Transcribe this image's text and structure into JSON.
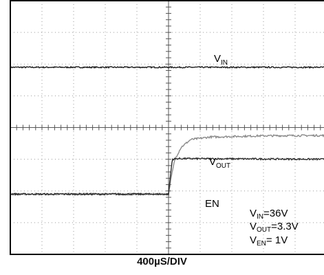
{
  "chart_data": {
    "type": "line",
    "timebase_label": "400µS/DIV",
    "x_unit": "div",
    "y_unit": "div",
    "xlim": [
      0,
      10
    ],
    "ylim": [
      -4,
      4
    ],
    "grid": true,
    "trigger_time_div": 5.0,
    "series": [
      {
        "name": "VIN",
        "label_main": "V",
        "label_sub": "IN",
        "color": "#1a1a1a",
        "noise_div": 0.02,
        "points": [
          [
            0,
            1.9
          ],
          [
            10,
            1.9
          ]
        ]
      },
      {
        "name": "VOUT",
        "label_main": "V",
        "label_sub": "OUT",
        "color": "#8a8a8a",
        "noise_div": 0.03,
        "points": [
          [
            0,
            -2.1
          ],
          [
            5.0,
            -2.1
          ],
          [
            5.08,
            -1.6
          ],
          [
            5.2,
            -1.0
          ],
          [
            5.4,
            -0.62
          ],
          [
            5.7,
            -0.38
          ],
          [
            6.3,
            -0.3
          ],
          [
            8,
            -0.26
          ],
          [
            10,
            -0.25
          ]
        ]
      },
      {
        "name": "EN",
        "label_main": "EN",
        "label_sub": "",
        "color": "#2a2a2a",
        "noise_div": 0.025,
        "points": [
          [
            0,
            -2.1
          ],
          [
            5.0,
            -2.1
          ],
          [
            5.05,
            -1.6
          ],
          [
            5.12,
            -1.0
          ],
          [
            5.3,
            -0.98
          ],
          [
            10,
            -1.0
          ]
        ]
      }
    ],
    "annotations": [
      {
        "main": "V",
        "sub": "IN",
        "suffix": "=36V"
      },
      {
        "main": "V",
        "sub": "OUT",
        "suffix": "=3.3V"
      },
      {
        "main": "V",
        "sub": "EN",
        "suffix": "= 1V"
      }
    ]
  }
}
